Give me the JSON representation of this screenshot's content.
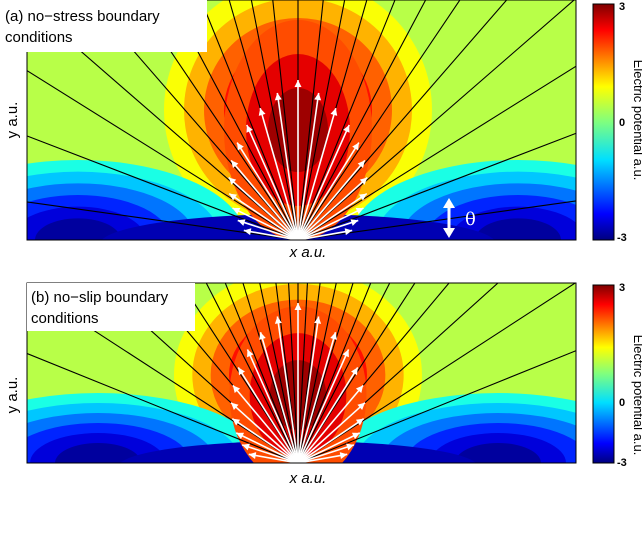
{
  "chart_data": [
    {
      "type": "heatmap",
      "title": "",
      "label": "(a) no−stress boundary conditions",
      "label_lines": [
        "(a) no−stress boundary",
        " conditions"
      ],
      "xlabel": "x  a.u.",
      "ylabel": "y  a.u.",
      "colorbar": {
        "label": "Electric potential  a.u.",
        "ticks": [
          3,
          0,
          -3
        ],
        "range": [
          -3,
          3
        ],
        "colormap": "jet"
      },
      "annotation": "θ",
      "field_lines_angles_deg": [
        8,
        21,
        32,
        41,
        49,
        56,
        62,
        68,
        74,
        79,
        84,
        90,
        96,
        101,
        106,
        112,
        118,
        124,
        131,
        139,
        148,
        159,
        172
      ],
      "velocity_arrows": {
        "count": 21,
        "direction": "radial-outward",
        "max_length_angle_deg": 90
      }
    },
    {
      "type": "heatmap",
      "title": "",
      "label": "(b) no−slip boundary conditions",
      "label_lines": [
        "(b) no−slip boundary",
        " conditions"
      ],
      "xlabel": "x  a.u.",
      "ylabel": "y  a.u.",
      "colorbar": {
        "label": "Electric potential  a.u.",
        "ticks": [
          3,
          0,
          -3
        ],
        "range": [
          -3,
          3
        ],
        "colormap": "jet"
      },
      "field_lines_angles_deg": [
        22,
        33,
        42,
        50,
        57,
        63,
        68,
        73,
        78,
        83,
        87,
        90,
        93,
        97,
        102,
        107,
        112,
        117,
        123,
        130,
        138,
        147,
        158
      ],
      "velocity_arrows": {
        "count": 21,
        "direction": "radial-outward",
        "max_length_angle_deg": 80
      }
    }
  ]
}
